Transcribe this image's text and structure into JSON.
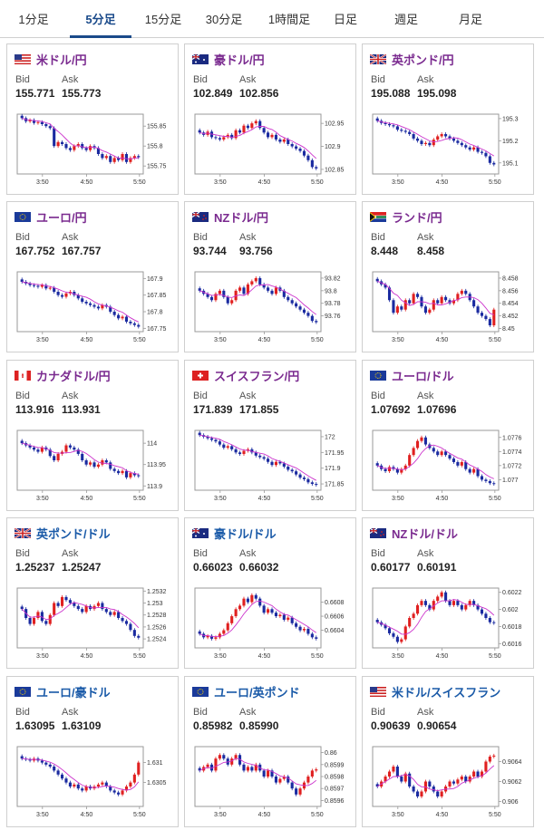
{
  "tabs": [
    {
      "label": "1分足"
    },
    {
      "label": "5分足",
      "active": true
    },
    {
      "label": "15分足"
    },
    {
      "label": "30分足"
    },
    {
      "label": "1時間足"
    },
    {
      "label": "日足"
    },
    {
      "label": "週足"
    },
    {
      "label": "月足"
    }
  ],
  "labels": {
    "bid": "Bid",
    "ask": "Ask"
  },
  "colors": {
    "up": "#e02020",
    "down": "#1a2aa0",
    "ma": "#cc33cc",
    "accent": "#1a4a8a"
  },
  "pairs": [
    {
      "name": "米ドル/円",
      "flag": "us-flag",
      "bid": "155.771",
      "ask": "155.773",
      "color": "purple",
      "chart_data": {
        "type": "candlestick",
        "x_ticks": [
          "3:50",
          "4:50",
          "5:50"
        ],
        "y_ticks": [
          "155.85",
          "155.8",
          "155.75"
        ],
        "ylim": [
          155.73,
          155.88
        ],
        "closes": [
          155.87,
          155.862,
          155.865,
          155.858,
          155.86,
          155.855,
          155.85,
          155.845,
          155.8,
          155.81,
          155.805,
          155.795,
          155.79,
          155.8,
          155.805,
          155.795,
          155.79,
          155.8,
          155.795,
          155.78,
          155.77,
          155.775,
          155.76,
          155.77,
          155.765,
          155.78,
          155.76,
          155.77,
          155.775,
          155.772
        ]
      }
    },
    {
      "name": "豪ドル/円",
      "flag": "au-flag",
      "bid": "102.849",
      "ask": "102.856",
      "color": "purple",
      "chart_data": {
        "type": "candlestick",
        "x_ticks": [
          "3:50",
          "4:50",
          "5:50"
        ],
        "y_ticks": [
          "102.95",
          "102.9",
          "102.85"
        ],
        "ylim": [
          102.84,
          102.97
        ],
        "closes": [
          102.93,
          102.925,
          102.932,
          102.92,
          102.918,
          102.915,
          102.92,
          102.925,
          102.918,
          102.935,
          102.93,
          102.945,
          102.94,
          102.95,
          102.955,
          102.94,
          102.93,
          102.92,
          102.925,
          102.915,
          102.91,
          102.915,
          102.905,
          102.9,
          102.895,
          102.89,
          102.88,
          102.87,
          102.855,
          102.852
        ]
      }
    },
    {
      "name": "英ポンド/円",
      "flag": "uk-flag",
      "bid": "195.088",
      "ask": "195.098",
      "color": "purple",
      "chart_data": {
        "type": "candlestick",
        "x_ticks": [
          "3:50",
          "4:50",
          "5:50"
        ],
        "y_ticks": [
          "195.3",
          "195.2",
          "195.1"
        ],
        "ylim": [
          195.05,
          195.32
        ],
        "closes": [
          195.29,
          195.28,
          195.275,
          195.27,
          195.265,
          195.25,
          195.245,
          195.24,
          195.23,
          195.21,
          195.2,
          195.185,
          195.19,
          195.18,
          195.205,
          195.22,
          195.23,
          195.22,
          195.21,
          195.2,
          195.19,
          195.18,
          195.17,
          195.16,
          195.17,
          195.15,
          195.145,
          195.13,
          195.1,
          195.093
        ]
      }
    },
    {
      "name": "ユーロ/円",
      "flag": "eu-flag",
      "bid": "167.752",
      "ask": "167.757",
      "color": "purple",
      "chart_data": {
        "type": "candlestick",
        "x_ticks": [
          "3:50",
          "4:50",
          "5:50"
        ],
        "y_ticks": [
          "167.9",
          "167.85",
          "167.8",
          "167.75"
        ],
        "ylim": [
          167.74,
          167.92
        ],
        "closes": [
          167.89,
          167.885,
          167.88,
          167.878,
          167.875,
          167.88,
          167.87,
          167.872,
          167.86,
          167.85,
          167.845,
          167.855,
          167.86,
          167.85,
          167.84,
          167.83,
          167.825,
          167.82,
          167.815,
          167.81,
          167.82,
          167.815,
          167.8,
          167.79,
          167.78,
          167.785,
          167.77,
          167.765,
          167.76,
          167.755
        ]
      }
    },
    {
      "name": "NZドル/円",
      "flag": "nz-flag",
      "bid": "93.744",
      "ask": "93.756",
      "color": "purple",
      "chart_data": {
        "type": "candlestick",
        "x_ticks": [
          "3:50",
          "4:50",
          "5:50"
        ],
        "y_ticks": [
          "93.82",
          "93.8",
          "93.78",
          "93.76"
        ],
        "ylim": [
          93.735,
          93.83
        ],
        "closes": [
          93.8,
          93.795,
          93.79,
          93.785,
          93.795,
          93.8,
          93.79,
          93.78,
          93.785,
          93.8,
          93.805,
          93.795,
          93.81,
          93.815,
          93.82,
          93.81,
          93.805,
          93.8,
          93.795,
          93.805,
          93.8,
          93.79,
          93.785,
          93.78,
          93.775,
          93.77,
          93.765,
          93.76,
          93.752,
          93.75
        ]
      }
    },
    {
      "name": "ランド/円",
      "flag": "za-flag",
      "bid": "8.448",
      "ask": "8.458",
      "color": "purple",
      "chart_data": {
        "type": "candlestick",
        "x_ticks": [
          "3:50",
          "4:50",
          "5:50"
        ],
        "y_ticks": [
          "8.458",
          "8.456",
          "8.454",
          "8.452",
          "8.45"
        ],
        "ylim": [
          8.4495,
          8.459
        ],
        "closes": [
          8.4575,
          8.457,
          8.4565,
          8.4545,
          8.4525,
          8.4535,
          8.453,
          8.4545,
          8.454,
          8.4555,
          8.455,
          8.4535,
          8.4525,
          8.453,
          8.4545,
          8.454,
          8.455,
          8.4545,
          8.454,
          8.4545,
          8.4555,
          8.456,
          8.4555,
          8.4545,
          8.4535,
          8.4525,
          8.452,
          8.4515,
          8.4505,
          8.453
        ]
      }
    },
    {
      "name": "カナダドル/円",
      "flag": "ca-flag",
      "bid": "113.916",
      "ask": "113.931",
      "color": "purple",
      "chart_data": {
        "type": "candlestick",
        "x_ticks": [
          "3:50",
          "4:50",
          "5:50"
        ],
        "y_ticks": [
          "114",
          "113.95",
          "113.9"
        ],
        "ylim": [
          113.89,
          114.03
        ],
        "closes": [
          114.0,
          113.995,
          113.99,
          113.985,
          113.98,
          113.99,
          113.985,
          113.97,
          113.96,
          113.975,
          113.98,
          113.995,
          113.99,
          113.985,
          113.975,
          113.96,
          113.95,
          113.955,
          113.945,
          113.95,
          113.96,
          113.955,
          113.94,
          113.935,
          113.93,
          113.935,
          113.92,
          113.93,
          113.925,
          113.923
        ]
      }
    },
    {
      "name": "スイスフラン/円",
      "flag": "ch-flag",
      "bid": "171.839",
      "ask": "171.855",
      "color": "purple",
      "chart_data": {
        "type": "candlestick",
        "x_ticks": [
          "3:50",
          "4:50",
          "5:50"
        ],
        "y_ticks": [
          "172",
          "171.95",
          "171.9",
          "171.85"
        ],
        "ylim": [
          171.83,
          172.02
        ],
        "closes": [
          172.005,
          172.0,
          171.995,
          171.99,
          171.985,
          171.975,
          171.965,
          171.97,
          171.96,
          171.95,
          171.945,
          171.955,
          171.96,
          171.95,
          171.94,
          171.935,
          171.93,
          171.92,
          171.91,
          171.92,
          171.915,
          171.905,
          171.895,
          171.89,
          171.88,
          171.87,
          171.865,
          171.855,
          171.85,
          171.847
        ]
      }
    },
    {
      "name": "ユーロ/ドル",
      "flag": "eu-flag",
      "bid": "1.07692",
      "ask": "1.07696",
      "color": "purple",
      "chart_data": {
        "type": "candlestick",
        "x_ticks": [
          "3:50",
          "4:50",
          "5:50"
        ],
        "y_ticks": [
          "1.0776",
          "1.0774",
          "1.0772",
          "1.077"
        ],
        "ylim": [
          1.07685,
          1.0777
        ],
        "closes": [
          1.0772,
          1.07715,
          1.07712,
          1.07718,
          1.07715,
          1.0771,
          1.07715,
          1.0772,
          1.07735,
          1.07745,
          1.07755,
          1.0776,
          1.0775,
          1.07745,
          1.0774,
          1.07735,
          1.0774,
          1.07735,
          1.0773,
          1.07725,
          1.0772,
          1.07725,
          1.07715,
          1.0771,
          1.07715,
          1.07705,
          1.077,
          1.07698,
          1.07695,
          1.07694
        ]
      }
    },
    {
      "name": "英ポンド/ドル",
      "flag": "uk-flag",
      "bid": "1.25237",
      "ask": "1.25247",
      "color": "blue",
      "chart_data": {
        "type": "candlestick",
        "x_ticks": [
          "3:50",
          "4:50",
          "5:50"
        ],
        "y_ticks": [
          "1.2532",
          "1.253",
          "1.2528",
          "1.2526",
          "1.2524"
        ],
        "ylim": [
          1.25225,
          1.25325
        ],
        "closes": [
          1.2529,
          1.25275,
          1.25265,
          1.25275,
          1.25285,
          1.2527,
          1.25265,
          1.2528,
          1.253,
          1.25295,
          1.2531,
          1.25305,
          1.253,
          1.25295,
          1.2529,
          1.25285,
          1.25295,
          1.2529,
          1.25295,
          1.253,
          1.2529,
          1.25285,
          1.2528,
          1.25285,
          1.25275,
          1.2527,
          1.25265,
          1.25255,
          1.25245,
          1.25242
        ]
      }
    },
    {
      "name": "豪ドル/ドル",
      "flag": "au-flag",
      "bid": "0.66023",
      "ask": "0.66032",
      "color": "blue",
      "chart_data": {
        "type": "candlestick",
        "x_ticks": [
          "3:50",
          "4:50",
          "5:50"
        ],
        "y_ticks": [
          "0.6608",
          "0.6606",
          "0.6604"
        ],
        "ylim": [
          0.66015,
          0.661
        ],
        "closes": [
          0.66035,
          0.6603,
          0.66032,
          0.66028,
          0.6603,
          0.66035,
          0.6604,
          0.6605,
          0.6606,
          0.6607,
          0.66075,
          0.66085,
          0.6608,
          0.6609,
          0.66085,
          0.66075,
          0.66065,
          0.6607,
          0.66065,
          0.6606,
          0.66062,
          0.66055,
          0.66058,
          0.6605,
          0.66045,
          0.6604,
          0.66042,
          0.66035,
          0.6603,
          0.66028
        ]
      }
    },
    {
      "name": "NZドル/ドル",
      "flag": "nz-flag",
      "bid": "0.60177",
      "ask": "0.60191",
      "color": "purple",
      "chart_data": {
        "type": "candlestick",
        "x_ticks": [
          "3:50",
          "4:50",
          "5:50"
        ],
        "y_ticks": [
          "0.6022",
          "0.602",
          "0.6018",
          "0.6016"
        ],
        "ylim": [
          0.60155,
          0.60225
        ],
        "closes": [
          0.60185,
          0.60182,
          0.60178,
          0.60172,
          0.60168,
          0.60162,
          0.60165,
          0.6018,
          0.6019,
          0.60195,
          0.60205,
          0.6021,
          0.60205,
          0.602,
          0.6021,
          0.60215,
          0.6022,
          0.6021,
          0.60205,
          0.6021,
          0.60205,
          0.602,
          0.60205,
          0.6021,
          0.60205,
          0.602,
          0.60195,
          0.6019,
          0.60185,
          0.60184
        ]
      }
    },
    {
      "name": "ユーロ/豪ドル",
      "flag": "eu-flag",
      "bid": "1.63095",
      "ask": "1.63109",
      "color": "blue",
      "chart_data": {
        "type": "candlestick",
        "x_ticks": [
          "3:50",
          "4:50",
          "5:50"
        ],
        "y_ticks": [
          "1.631",
          "1.6305"
        ],
        "ylim": [
          1.6299,
          1.6314
        ],
        "closes": [
          1.6311,
          1.63108,
          1.63105,
          1.6311,
          1.63105,
          1.631,
          1.63095,
          1.6309,
          1.6308,
          1.6307,
          1.6306,
          1.6305,
          1.6304,
          1.63045,
          1.63035,
          1.6303,
          1.6304,
          1.63035,
          1.6304,
          1.63045,
          1.6305,
          1.6304,
          1.6303,
          1.63025,
          1.6302,
          1.6303,
          1.6304,
          1.6305,
          1.6307,
          1.631
        ]
      }
    },
    {
      "name": "ユーロ/英ポンド",
      "flag": "eu-flag",
      "bid": "0.85982",
      "ask": "0.85990",
      "color": "blue",
      "chart_data": {
        "type": "candlestick",
        "x_ticks": [
          "3:50",
          "4:50",
          "5:50"
        ],
        "y_ticks": [
          "0.86",
          "0.8599",
          "0.8598",
          "0.8597",
          "0.8596"
        ],
        "ylim": [
          0.85955,
          0.86005
        ],
        "closes": [
          0.85985,
          0.85988,
          0.8599,
          0.85985,
          0.85995,
          0.85998,
          0.85995,
          0.8599,
          0.85995,
          0.85998,
          0.8599,
          0.85985,
          0.85988,
          0.85985,
          0.8599,
          0.85985,
          0.8598,
          0.85985,
          0.8598,
          0.85975,
          0.85978,
          0.8598,
          0.85975,
          0.8597,
          0.85965,
          0.8597,
          0.85975,
          0.8598,
          0.85985,
          0.85986
        ]
      }
    },
    {
      "name": "米ドル/スイスフラン",
      "flag": "us-flag",
      "bid": "0.90639",
      "ask": "0.90654",
      "color": "blue",
      "chart_data": {
        "type": "candlestick",
        "x_ticks": [
          "3:50",
          "4:50",
          "5:50"
        ],
        "y_ticks": [
          "0.9064",
          "0.9062",
          "0.906"
        ],
        "ylim": [
          0.90595,
          0.90655
        ],
        "closes": [
          0.90615,
          0.9062,
          0.90625,
          0.9063,
          0.90635,
          0.90625,
          0.9062,
          0.90628,
          0.90615,
          0.9061,
          0.90605,
          0.9061,
          0.9062,
          0.90615,
          0.9061,
          0.90605,
          0.9061,
          0.90615,
          0.9062,
          0.90618,
          0.90622,
          0.90625,
          0.9062,
          0.90625,
          0.9063,
          0.90625,
          0.9063,
          0.9064,
          0.90645,
          0.90646
        ]
      }
    }
  ]
}
